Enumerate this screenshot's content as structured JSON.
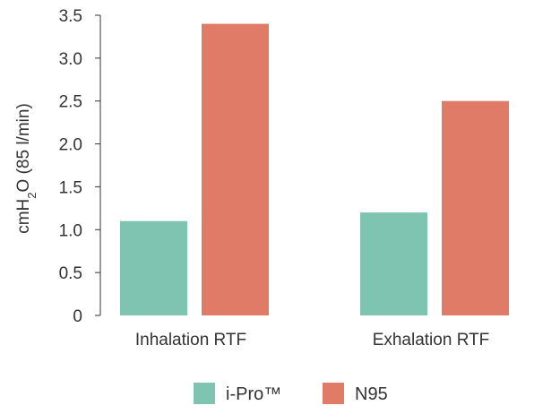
{
  "chart_data": {
    "type": "bar",
    "title": "",
    "xlabel": "",
    "ylabel": "cmH2O (85 l/min)",
    "ylabel_parts": {
      "before": "cmH",
      "sub": "2",
      "after": "O (85 l/min)"
    },
    "categories": [
      "Inhalation RTF",
      "Exhalation RTF"
    ],
    "series": [
      {
        "name": "i-Pro™",
        "color": "#7fc4b0",
        "values": [
          1.1,
          1.2
        ]
      },
      {
        "name": "N95",
        "color": "#e07b67",
        "values": [
          3.4,
          2.5
        ]
      }
    ],
    "ylim": [
      0,
      3.5
    ],
    "yticks": [
      "0",
      "0.5",
      "1.0",
      "1.5",
      "2.0",
      "2.5",
      "3.0",
      "3.5"
    ],
    "grid": false,
    "legend_position": "bottom"
  }
}
